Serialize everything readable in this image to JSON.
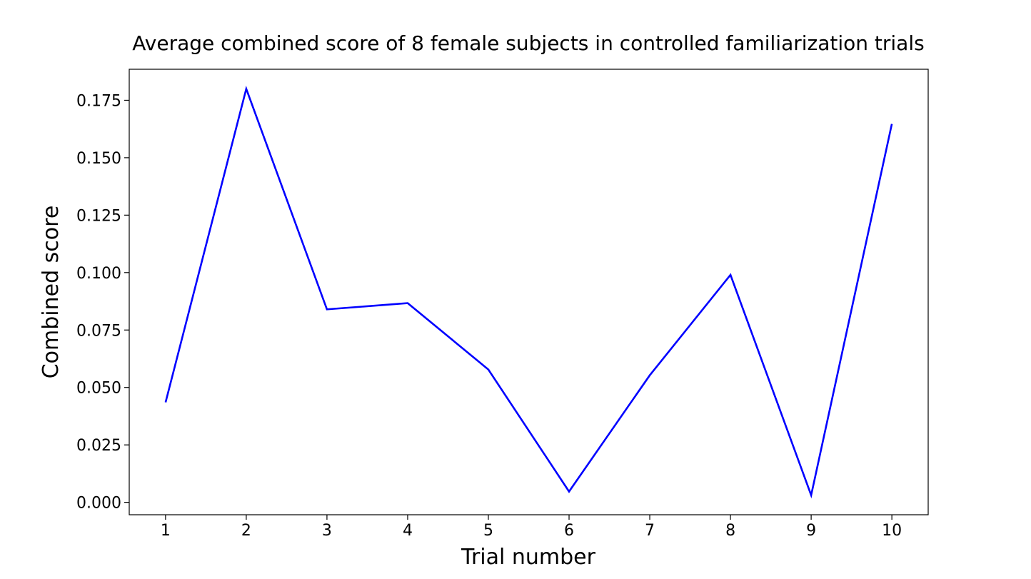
{
  "chart_data": {
    "type": "line",
    "title": "Average combined score of 8 female subjects in controlled familiarization trials",
    "xlabel": "Trial number",
    "ylabel": "Combined score",
    "x": [
      1,
      2,
      3,
      4,
      5,
      6,
      7,
      8,
      9,
      10
    ],
    "series": [
      {
        "values": [
          0.0435,
          0.18,
          0.084,
          0.0867,
          0.0578,
          0.0047,
          0.0553,
          0.099,
          0.0031,
          0.1647
        ],
        "color": "#0000ff"
      }
    ],
    "xticks": [
      1,
      2,
      3,
      4,
      5,
      6,
      7,
      8,
      9,
      10
    ],
    "xtick_labels": [
      "1",
      "2",
      "3",
      "4",
      "5",
      "6",
      "7",
      "8",
      "9",
      "10"
    ],
    "yticks": [
      0.0,
      0.025,
      0.05,
      0.075,
      0.1,
      0.125,
      0.15,
      0.175
    ],
    "ytick_labels": [
      "0.000",
      "0.025",
      "0.050",
      "0.075",
      "0.100",
      "0.125",
      "0.150",
      "0.175"
    ],
    "xlim": [
      0.55,
      10.45
    ],
    "ylim": [
      -0.0054,
      0.1885
    ],
    "grid": false,
    "legend": "none"
  }
}
